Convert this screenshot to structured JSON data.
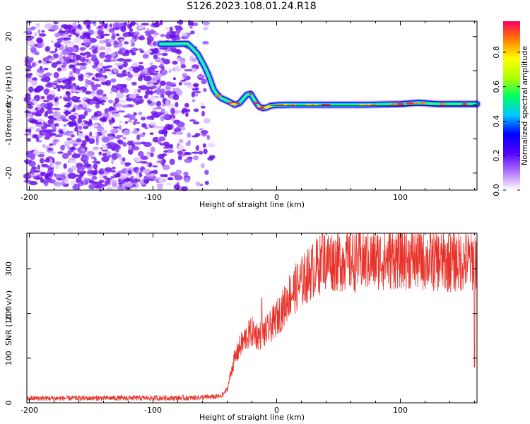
{
  "title": "S126.2023.108.01.24.R18",
  "chart_data": [
    {
      "type": "heatmap",
      "xlabel": "Height of straight line (km)",
      "ylabel": "Frequency (Hz)",
      "xlim": [
        -202,
        162
      ],
      "ylim": [
        -25,
        24.5
      ],
      "x_ticks": [
        -200,
        -100,
        0,
        100
      ],
      "x_tick_labels": [
        "-200",
        "-100",
        "0",
        "100"
      ],
      "y_ticks": [
        -20,
        -10,
        0,
        10,
        20
      ],
      "y_tick_labels": [
        "-20",
        "-10",
        "0",
        "10",
        "20"
      ],
      "noise_region_x": [
        -202,
        -52
      ],
      "track": {
        "x": [
          -94,
          -85,
          -77,
          -72,
          -68,
          -64,
          -61,
          -58,
          -55,
          -53,
          -51,
          -48,
          -45,
          -42,
          -38,
          -34,
          -30,
          -27,
          -24,
          -21,
          -19,
          -17,
          -14,
          -11,
          -8,
          -5,
          0,
          10,
          40,
          70,
          100,
          115,
          130,
          162
        ],
        "y": [
          17.8,
          17.8,
          17.9,
          17.9,
          16.5,
          15,
          13,
          11,
          8.5,
          6.5,
          4.5,
          3,
          2,
          1.5,
          0.8,
          0,
          0.5,
          1.8,
          3,
          3.2,
          2,
          0.8,
          -0.6,
          -1,
          -0.8,
          -0.3,
          -0.1,
          0,
          0,
          0,
          0.2,
          0.6,
          0.2,
          0.2
        ]
      },
      "colorbar": {
        "label": "Normalized spectral amplitude",
        "ticks": [
          0.0,
          0.2,
          0.4,
          0.6,
          0.8
        ],
        "tick_labels": [
          "0.0",
          "0.2",
          "0.4",
          "0.6",
          "0.8"
        ],
        "colors": [
          "#ffffff",
          "#b070ff",
          "#5000ff",
          "#0000ff",
          "#00c8ff",
          "#00ff60",
          "#b0ff00",
          "#ffff00",
          "#ff8000",
          "#ff0060"
        ]
      }
    },
    {
      "type": "line",
      "xlabel": "Height of straight line (km)",
      "ylabel": "SNR (10 * v/v)",
      "xlim": [
        -202,
        162
      ],
      "ylim": [
        0,
        380
      ],
      "x_ticks": [
        -200,
        -100,
        0,
        100
      ],
      "x_tick_labels": [
        "-200",
        "-100",
        "0",
        "100"
      ],
      "y_ticks": [
        0,
        100,
        200,
        300
      ],
      "y_tick_labels": [
        "0",
        "100",
        "200",
        "300"
      ],
      "color": "#e8332a",
      "trend": {
        "x": [
          -202,
          -70,
          -45,
          -40,
          -35,
          -30,
          -25,
          -20,
          -15,
          -10,
          -5,
          0,
          5,
          10,
          20,
          30,
          40,
          60,
          80,
          100,
          120,
          140,
          162
        ],
        "y": [
          10,
          11,
          14,
          30,
          90,
          125,
          145,
          160,
          150,
          155,
          170,
          190,
          210,
          240,
          270,
          300,
          320,
          315,
          320,
          325,
          320,
          315,
          320
        ]
      },
      "spikes": [
        {
          "x": -12,
          "y": 235
        },
        {
          "x": 37,
          "y": 380
        },
        {
          "x": 56,
          "y": 360
        },
        {
          "x": 97,
          "y": 365
        },
        {
          "x": 160,
          "y": 80
        }
      ]
    }
  ]
}
